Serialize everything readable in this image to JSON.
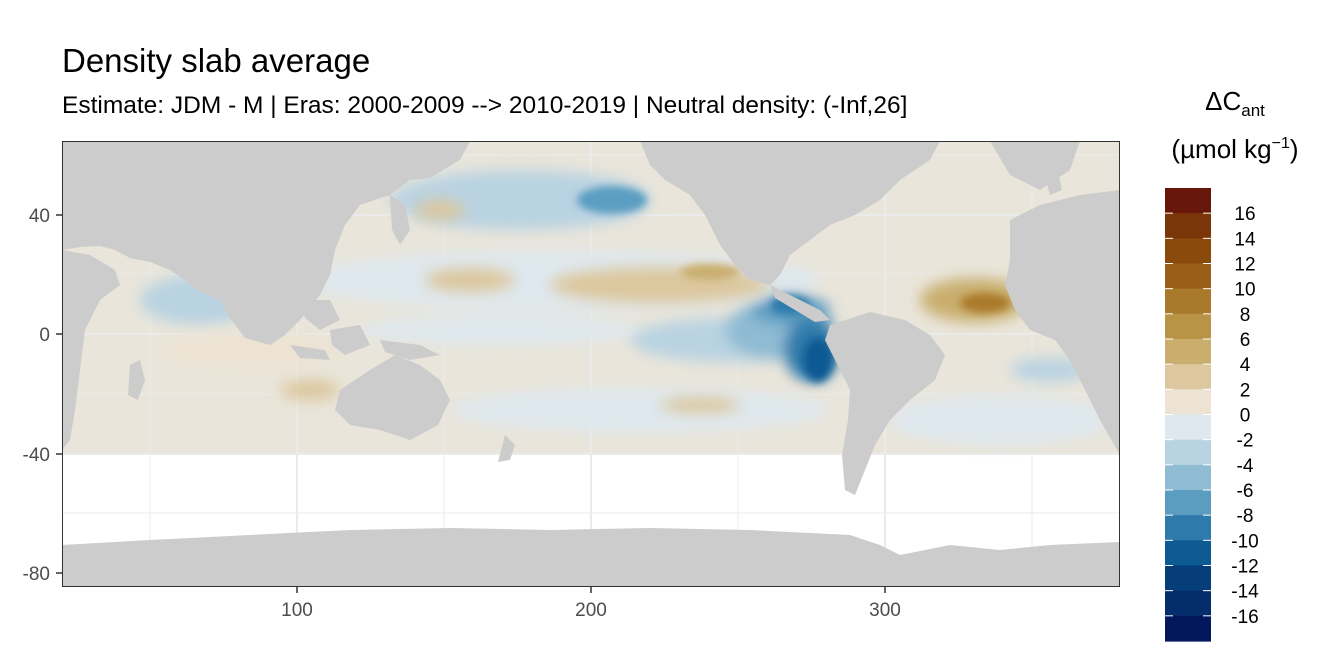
{
  "title": "Density slab average",
  "subtitle": "Estimate: JDM - M | Eras: 2000-2009 --> 2010-2019 | Neutral density: (-Inf,26]",
  "legend": {
    "title_symbol": "ΔC",
    "title_sub": "ant",
    "units_open": "(µmol kg",
    "units_sup": "−1",
    "units_close": ")",
    "labels": [
      "16",
      "14",
      "12",
      "10",
      "8",
      "6",
      "4",
      "2",
      "0",
      "-2",
      "-4",
      "-6",
      "-8",
      "-10",
      "-12",
      "-14",
      "-16"
    ],
    "colors": [
      "#67180a",
      "#7a3509",
      "#8a4a0b",
      "#9a5f16",
      "#aa7a2c",
      "#b99447",
      "#c9ae6e",
      "#dcc79e",
      "#ece3d3",
      "#dfe8ee",
      "#b9d3e2",
      "#8fbbd3",
      "#5b9dc1",
      "#2e7aab",
      "#0e5a93",
      "#063e7a",
      "#042d6c",
      "#03175c"
    ]
  },
  "axes": {
    "x_ticks": [
      "100",
      "200",
      "300"
    ],
    "y_ticks": [
      "40",
      "0",
      "-40",
      "-80"
    ]
  },
  "colors": {
    "land": "#cccccc",
    "grid": "#ebebeb",
    "panel_border": "#333333"
  },
  "map_data": {
    "projection": "equirectangular",
    "lon_range": [
      20,
      380
    ],
    "lat_range": [
      -85,
      65
    ],
    "value_range": [
      -16,
      16
    ]
  }
}
